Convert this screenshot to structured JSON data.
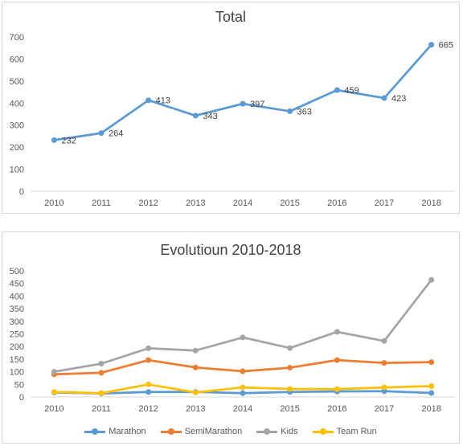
{
  "chart_data": [
    {
      "type": "line",
      "title": "Total",
      "categories": [
        "2010",
        "2011",
        "2012",
        "2013",
        "2014",
        "2015",
        "2016",
        "2017",
        "2018"
      ],
      "series": [
        {
          "values": [
            232,
            264,
            413,
            343,
            397,
            363,
            459,
            423,
            665
          ],
          "color": "#5b9bd5"
        }
      ],
      "data_labels": [
        "232",
        "264",
        "413",
        "343",
        "397",
        "363",
        "459",
        "423",
        "665"
      ],
      "yticks": [
        "0",
        "100",
        "200",
        "300",
        "400",
        "500",
        "600",
        "700"
      ],
      "ylim": [
        0,
        700
      ],
      "grid": false
    },
    {
      "type": "line",
      "title": "Evolutioun 2010-2018",
      "categories": [
        "2010",
        "2011",
        "2012",
        "2013",
        "2014",
        "2015",
        "2016",
        "2017",
        "2018"
      ],
      "series": [
        {
          "name": "Marathon",
          "color": "#5b9bd5",
          "values": [
            18,
            14,
            20,
            20,
            15,
            20,
            22,
            23,
            16
          ]
        },
        {
          "name": "SemiMarathon",
          "color": "#ed7d31",
          "values": [
            90,
            96,
            146,
            117,
            102,
            116,
            146,
            135,
            138
          ]
        },
        {
          "name": "Kids",
          "color": "#a5a5a5",
          "values": [
            100,
            132,
            193,
            184,
            236,
            194,
            258,
            222,
            464
          ]
        },
        {
          "name": "Team Run",
          "color": "#ffc000",
          "values": [
            20,
            15,
            50,
            18,
            38,
            32,
            31,
            38,
            43
          ]
        }
      ],
      "yticks": [
        "0",
        "50",
        "100",
        "150",
        "200",
        "250",
        "300",
        "350",
        "400",
        "450",
        "500"
      ],
      "ylim": [
        0,
        500
      ],
      "legend": "bottom",
      "grid": false
    }
  ]
}
